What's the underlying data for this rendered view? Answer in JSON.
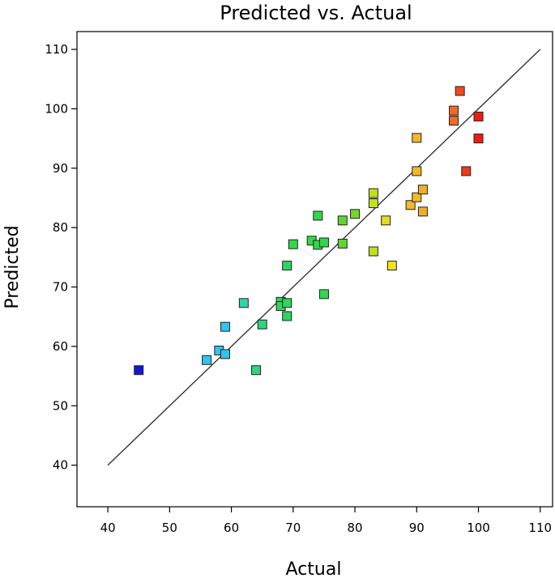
{
  "chart_data": {
    "type": "scatter",
    "title": "Predicted vs. Actual",
    "xlabel": "Actual",
    "ylabel": "Predicted",
    "xlim": [
      35,
      112
    ],
    "ylim": [
      33,
      113
    ],
    "xticks": [
      40,
      50,
      60,
      70,
      80,
      90,
      100,
      110
    ],
    "yticks": [
      40,
      50,
      60,
      70,
      80,
      90,
      100,
      110
    ],
    "grid": false,
    "reference_line": {
      "from": [
        40,
        40
      ],
      "to": [
        110,
        110
      ],
      "color": "#333333"
    },
    "points": [
      {
        "x": 45,
        "y": 56,
        "color": "#1515d8"
      },
      {
        "x": 56,
        "y": 57.7,
        "color": "#30c4ee"
      },
      {
        "x": 58,
        "y": 59.3,
        "color": "#30c4ee"
      },
      {
        "x": 59,
        "y": 58.7,
        "color": "#30c4ee"
      },
      {
        "x": 59,
        "y": 63.3,
        "color": "#30c4ee"
      },
      {
        "x": 62,
        "y": 67.3,
        "color": "#2cd6a8"
      },
      {
        "x": 64,
        "y": 56,
        "color": "#2cd67e"
      },
      {
        "x": 65,
        "y": 63.7,
        "color": "#2cd67e"
      },
      {
        "x": 68,
        "y": 67.5,
        "color": "#2ed65c"
      },
      {
        "x": 68,
        "y": 66.8,
        "color": "#2ed65c"
      },
      {
        "x": 69,
        "y": 67.3,
        "color": "#2ed65c"
      },
      {
        "x": 69,
        "y": 65.1,
        "color": "#2ed65c"
      },
      {
        "x": 69,
        "y": 73.6,
        "color": "#2ed65c"
      },
      {
        "x": 70,
        "y": 77.2,
        "color": "#30d84c"
      },
      {
        "x": 73,
        "y": 77.8,
        "color": "#30d84c"
      },
      {
        "x": 74,
        "y": 77.1,
        "color": "#30d84c"
      },
      {
        "x": 74,
        "y": 82,
        "color": "#30d84c"
      },
      {
        "x": 75,
        "y": 77.5,
        "color": "#30d84c"
      },
      {
        "x": 75,
        "y": 68.8,
        "color": "#30d84c"
      },
      {
        "x": 78,
        "y": 77.3,
        "color": "#5fd62e"
      },
      {
        "x": 78,
        "y": 81.2,
        "color": "#5fd62e"
      },
      {
        "x": 80,
        "y": 82.3,
        "color": "#74d62e"
      },
      {
        "x": 83,
        "y": 85.8,
        "color": "#c2e01e"
      },
      {
        "x": 83,
        "y": 84.1,
        "color": "#c2e01e"
      },
      {
        "x": 83,
        "y": 76,
        "color": "#c2e01e"
      },
      {
        "x": 85,
        "y": 81.2,
        "color": "#e6dc1e"
      },
      {
        "x": 86,
        "y": 73.6,
        "color": "#f0e21c"
      },
      {
        "x": 89,
        "y": 83.8,
        "color": "#f2b82a"
      },
      {
        "x": 90,
        "y": 85.1,
        "color": "#f2b82a"
      },
      {
        "x": 90,
        "y": 89.5,
        "color": "#f2b82a"
      },
      {
        "x": 90,
        "y": 95.1,
        "color": "#f2b82a"
      },
      {
        "x": 91,
        "y": 86.4,
        "color": "#f2ae2a"
      },
      {
        "x": 91,
        "y": 82.7,
        "color": "#f2ae2a"
      },
      {
        "x": 96,
        "y": 99.7,
        "color": "#f06a2a"
      },
      {
        "x": 96,
        "y": 98,
        "color": "#f06a2a"
      },
      {
        "x": 97,
        "y": 103,
        "color": "#f04a1e"
      },
      {
        "x": 98,
        "y": 89.5,
        "color": "#ee3a14"
      },
      {
        "x": 100,
        "y": 98.7,
        "color": "#ee1a14"
      },
      {
        "x": 100,
        "y": 95,
        "color": "#ee1a14"
      }
    ]
  }
}
